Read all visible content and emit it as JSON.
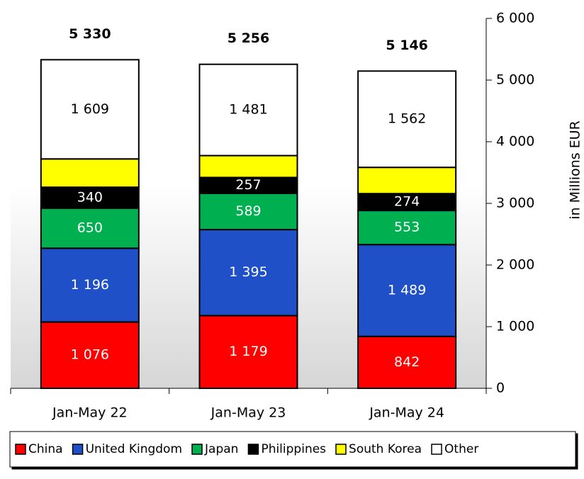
{
  "chart_data": {
    "type": "stacked_bar",
    "y_axis_label": "in Millions EUR",
    "categories": [
      "Jan-May 22",
      "Jan-May 23",
      "Jan-May 24"
    ],
    "series": [
      {
        "name": "China",
        "color": "#ff0000",
        "values": [
          1076,
          1179,
          842
        ],
        "value_labels": [
          "1 076",
          "1 179",
          "842"
        ]
      },
      {
        "name": "United Kingdom",
        "color": "#1f50c8",
        "values": [
          1196,
          1395,
          1489
        ],
        "value_labels": [
          "1 196",
          "1 395",
          "1 489"
        ]
      },
      {
        "name": "Japan",
        "color": "#00b050",
        "values": [
          650,
          589,
          553
        ],
        "value_labels": [
          "650",
          "589",
          "553"
        ]
      },
      {
        "name": "Philippines",
        "color": "#000000",
        "values": [
          340,
          257,
          274
        ],
        "value_labels": [
          "340",
          "257",
          "274"
        ]
      },
      {
        "name": "South Korea",
        "color": "#ffff00",
        "values": [
          459,
          355,
          426
        ],
        "value_labels": [
          null,
          null,
          null
        ]
      },
      {
        "name": "Other",
        "color": "#ffffff",
        "values": [
          1609,
          1481,
          1562
        ],
        "value_labels": [
          "1 609",
          "1 481",
          "1 562"
        ]
      }
    ],
    "totals": [
      5330,
      5256,
      5146
    ],
    "total_labels": [
      "5 330",
      "5 256",
      "5 146"
    ],
    "ylim": [
      0,
      6000
    ],
    "yticks": [
      0,
      {
        "value": 1000,
        "label": "1 000"
      },
      {
        "value": 2000,
        "label": "2 000"
      },
      {
        "value": 3000,
        "label": "3 000"
      },
      {
        "value": 4000,
        "label": "4 000"
      },
      {
        "value": 5000,
        "label": "5 000"
      },
      {
        "value": 6000,
        "label": "6 000"
      }
    ],
    "legend": "bottom"
  }
}
